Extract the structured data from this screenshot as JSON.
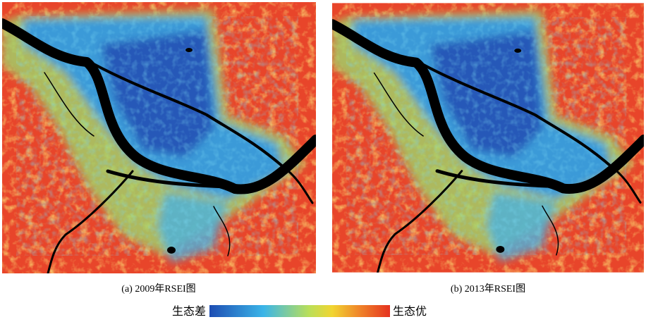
{
  "figure": {
    "panels": [
      {
        "caption": "(a) 2009年RSEI图"
      },
      {
        "caption": "(b) 2013年RSEI图"
      }
    ],
    "legend": {
      "low": "生态差",
      "high": "生态优"
    }
  }
}
